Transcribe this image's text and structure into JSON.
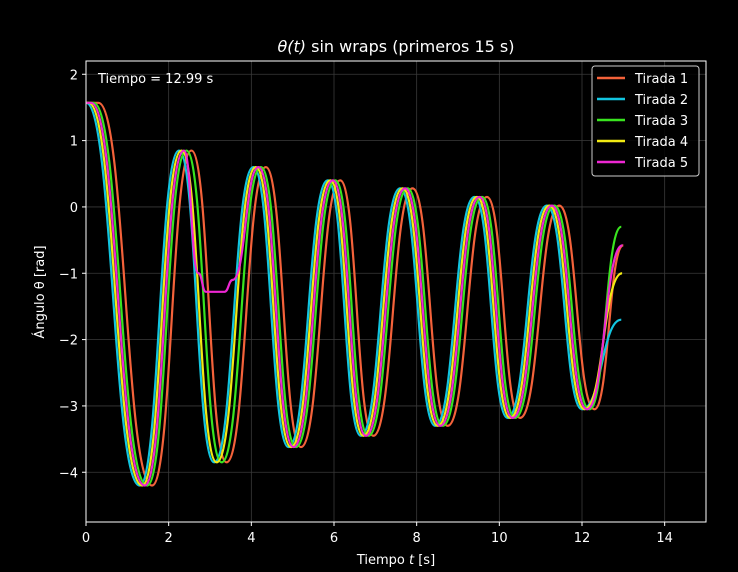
{
  "chart_data": {
    "type": "line",
    "title_prefix": "θ(t)",
    "title_suffix": " sin wraps (primeros 15 s)",
    "xlabel_prefix": "Tiempo ",
    "xlabel_var": "t",
    "xlabel_suffix": " [s]",
    "ylabel": "Ángulo θ [rad]",
    "annotation": "Tiempo = 12.99 s",
    "xlim": [
      0,
      15
    ],
    "ylim": [
      -4.75,
      2.2
    ],
    "xticks": [
      0,
      2,
      4,
      6,
      8,
      10,
      12,
      14
    ],
    "yticks": [
      -4,
      -3,
      -2,
      -1,
      0,
      1,
      2
    ],
    "grid": true,
    "legend_position": "top-right",
    "background": "#000000",
    "series": [
      {
        "name": "Tirada 1",
        "color": "#f4623a",
        "t0": 0.3,
        "end_value": -0.58,
        "x": [
          0,
          0.3,
          1.6,
          2.55,
          3.4,
          4.35,
          5.2,
          6.15,
          6.95,
          7.9,
          8.75,
          9.7,
          10.5,
          11.45,
          12.3,
          13.0
        ],
        "y": [
          1.57,
          1.57,
          -4.2,
          0.85,
          -3.85,
          0.6,
          -3.62,
          0.4,
          -3.45,
          0.28,
          -3.3,
          0.15,
          -3.18,
          0.02,
          -3.05,
          -0.58
        ]
      },
      {
        "name": "Tirada 2",
        "color": "#12c5e0",
        "t0": 0.0,
        "end_value": -1.7,
        "x": [
          0,
          1.3,
          2.25,
          3.1,
          4.05,
          4.9,
          5.85,
          6.65,
          7.6,
          8.45,
          9.4,
          10.2,
          11.15,
          12.0,
          12.95
        ],
        "y": [
          1.57,
          -4.2,
          0.85,
          -3.85,
          0.6,
          -3.62,
          0.4,
          -3.45,
          0.28,
          -3.3,
          0.15,
          -3.18,
          0.02,
          -3.05,
          -1.7
        ]
      },
      {
        "name": "Tirada 3",
        "color": "#39e41f",
        "t0": 0.18,
        "end_value": -0.3,
        "x": [
          0,
          0.18,
          1.48,
          2.43,
          3.28,
          4.23,
          5.08,
          6.03,
          6.83,
          7.78,
          8.63,
          9.58,
          10.38,
          11.33,
          12.18,
          12.95
        ],
        "y": [
          1.57,
          1.57,
          -4.2,
          0.85,
          -3.85,
          0.6,
          -3.62,
          0.4,
          -3.45,
          0.28,
          -3.3,
          0.15,
          -3.18,
          0.02,
          -3.05,
          -0.3
        ]
      },
      {
        "name": "Tirada 4",
        "color": "#f2ea13",
        "t0": 0.06,
        "end_value": -1.0,
        "x": [
          0,
          0.06,
          1.36,
          2.31,
          3.16,
          4.11,
          4.96,
          5.91,
          6.71,
          7.66,
          8.51,
          9.46,
          10.26,
          11.21,
          12.06,
          12.97
        ],
        "y": [
          1.57,
          1.57,
          -4.2,
          0.85,
          -3.85,
          0.6,
          -3.62,
          0.4,
          -3.45,
          0.28,
          -3.3,
          0.15,
          -3.18,
          0.02,
          -3.05,
          -1.0
        ]
      },
      {
        "name": "Tirada 5",
        "color": "#ee27d3",
        "t0": 0.12,
        "end_value": -0.58,
        "x": [
          0,
          0.12,
          1.42,
          2.37,
          2.72,
          2.9,
          3.35,
          3.55,
          4.17,
          5.02,
          5.97,
          6.77,
          7.72,
          8.57,
          9.52,
          10.32,
          11.27,
          12.12,
          12.98
        ],
        "y": [
          1.57,
          1.57,
          -4.2,
          0.85,
          -1.0,
          -1.28,
          -1.28,
          -1.1,
          0.6,
          -3.62,
          0.4,
          -3.45,
          0.28,
          -3.3,
          0.15,
          -3.18,
          0.02,
          -3.05,
          -0.58
        ]
      }
    ]
  }
}
